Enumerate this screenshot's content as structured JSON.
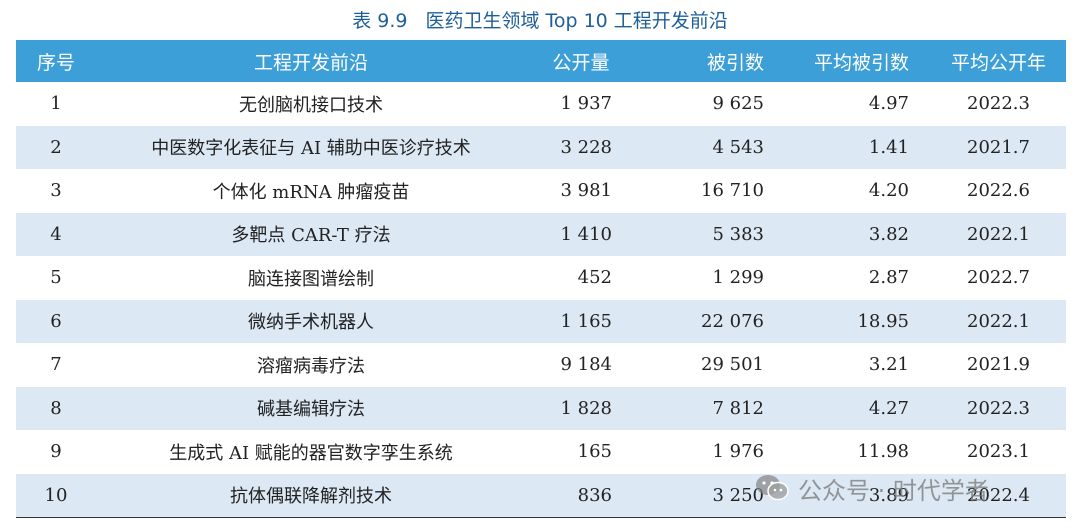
{
  "title": {
    "number": "表 9.9",
    "text": "医药卫生领域 Top 10 工程开发前沿"
  },
  "columns": [
    "序号",
    "工程开发前沿",
    "公开量",
    "被引数",
    "平均被引数",
    "平均公开年"
  ],
  "rows": [
    {
      "no": "1",
      "name": "无创脑机接口技术",
      "pub": "1 937",
      "cites": "9 625",
      "avg": "4.97",
      "year": "2022.3"
    },
    {
      "no": "2",
      "name": "中医数字化表征与 AI 辅助中医诊疗技术",
      "pub": "3 228",
      "cites": "4 543",
      "avg": "1.41",
      "year": "2021.7"
    },
    {
      "no": "3",
      "name": "个体化 mRNA 肿瘤疫苗",
      "pub": "3 981",
      "cites": "16 710",
      "avg": "4.20",
      "year": "2022.6"
    },
    {
      "no": "4",
      "name": "多靶点 CAR-T 疗法",
      "pub": "1 410",
      "cites": "5 383",
      "avg": "3.82",
      "year": "2022.1"
    },
    {
      "no": "5",
      "name": "脑连接图谱绘制",
      "pub": "452",
      "cites": "1 299",
      "avg": "2.87",
      "year": "2022.7"
    },
    {
      "no": "6",
      "name": "微纳手术机器人",
      "pub": "1 165",
      "cites": "22 076",
      "avg": "18.95",
      "year": "2022.1"
    },
    {
      "no": "7",
      "name": "溶瘤病毒疗法",
      "pub": "9 184",
      "cites": "29 501",
      "avg": "3.21",
      "year": "2021.9"
    },
    {
      "no": "8",
      "name": "碱基编辑疗法",
      "pub": "1 828",
      "cites": "7 812",
      "avg": "4.27",
      "year": "2022.3"
    },
    {
      "no": "9",
      "name": "生成式 AI 赋能的器官数字孪生系统",
      "pub": "165",
      "cites": "1 976",
      "avg": "11.98",
      "year": "2023.1"
    },
    {
      "no": "10",
      "name": "抗体偶联降解剂技术",
      "pub": "836",
      "cites": "3 250",
      "avg": "3.89",
      "year": "2022.4"
    }
  ],
  "watermark": {
    "text": "公众号 · 时代学者",
    "icon": "wechat-icon"
  },
  "colors": {
    "header_bg": "#3d9fd8",
    "stripe_bg": "#dce8f4",
    "title_color": "#1f5f99"
  }
}
